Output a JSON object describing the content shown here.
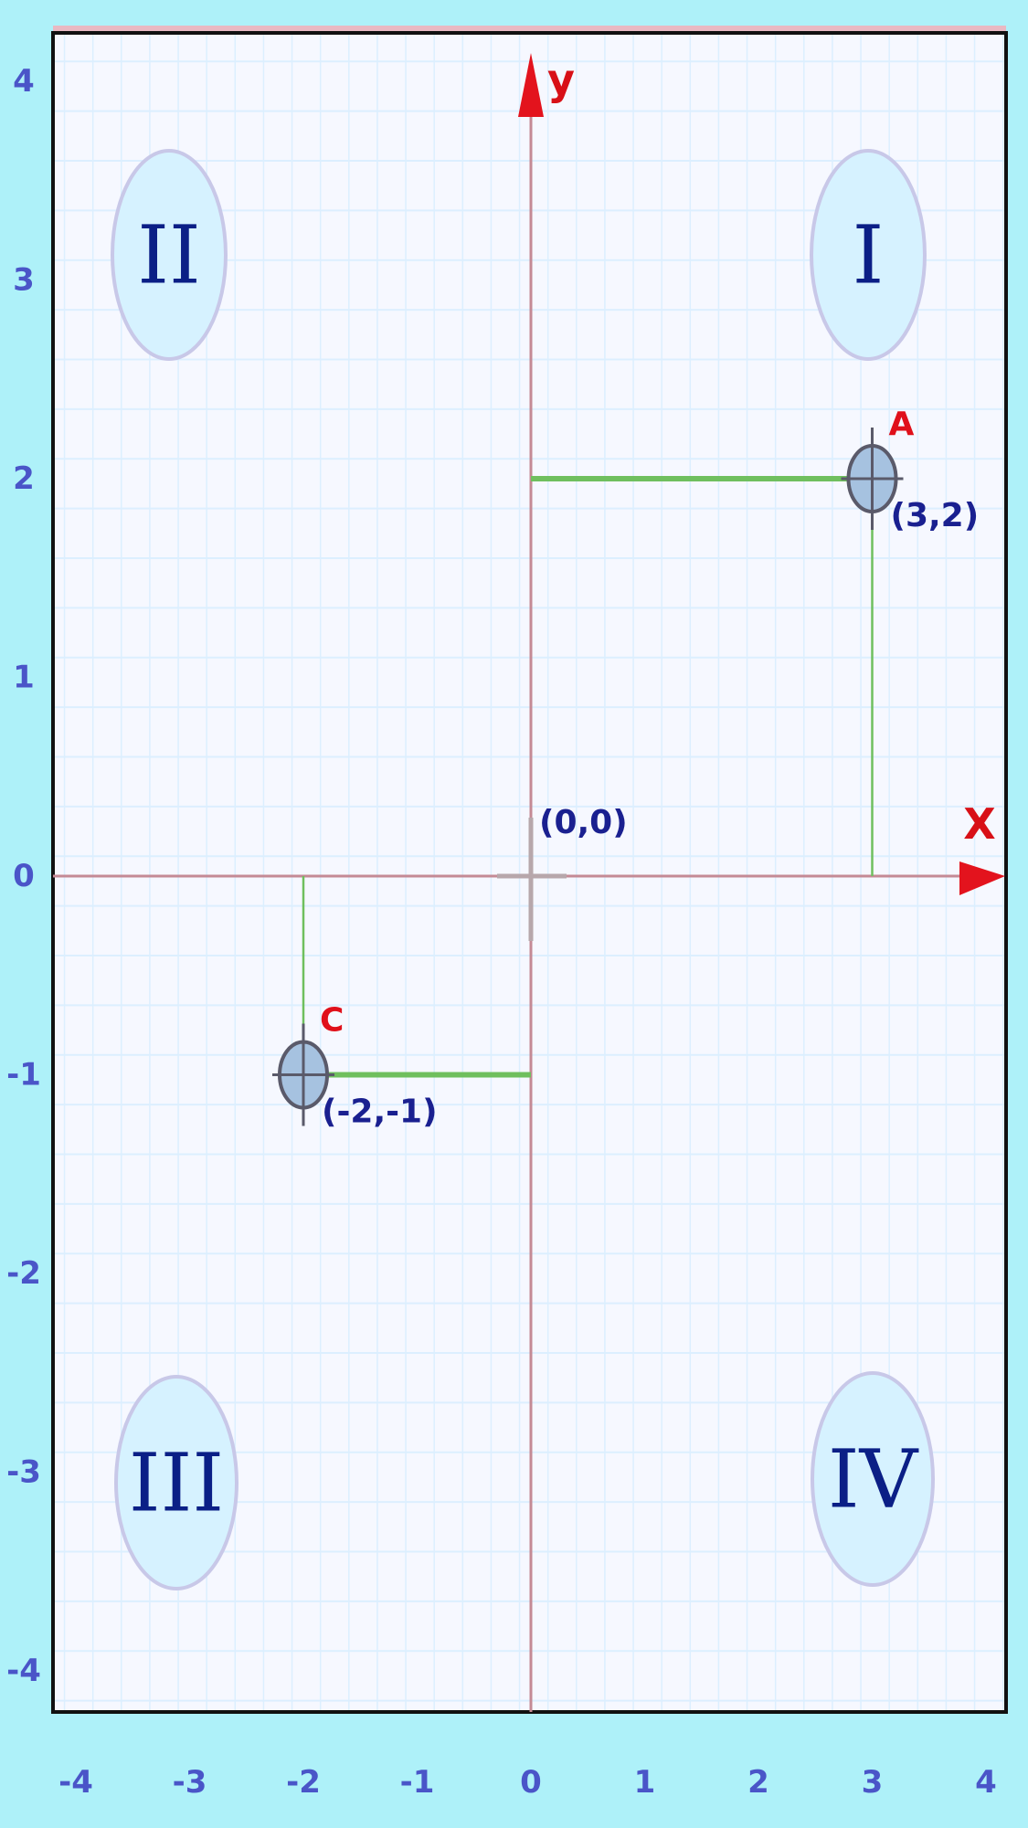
{
  "axes": {
    "x_label": "X",
    "y_label": "y",
    "x_range": [
      -4,
      4
    ],
    "y_range": [
      -4,
      4
    ],
    "x_ticks": [
      "-4",
      "-3",
      "-2",
      "-1",
      "0",
      "1",
      "2",
      "3",
      "4"
    ],
    "y_ticks": [
      "4",
      "3",
      "2",
      "1",
      "0",
      "-1",
      "-2",
      "-3",
      "-4"
    ],
    "origin_label": "(0,0)"
  },
  "quadrants": [
    {
      "id": "q1",
      "label": "I"
    },
    {
      "id": "q2",
      "label": "II"
    },
    {
      "id": "q3",
      "label": "III"
    },
    {
      "id": "q4",
      "label": "IV"
    }
  ],
  "points": [
    {
      "id": "a",
      "name": "A",
      "coord_label": "(3,2)",
      "x": 3,
      "y": 2
    },
    {
      "id": "c",
      "name": "C",
      "coord_label": "(-2,-1)",
      "x": -2,
      "y": -1
    }
  ],
  "colors": {
    "background": "#aef1f9",
    "grid_minor": "#dcefff",
    "grid_major": "#9ee6f0",
    "axis": "#c48a95",
    "projection": "#6fbf5e",
    "arrow": "#e3131d",
    "quadrant_fill": "#d6f2ff",
    "quadrant_stroke": "#c8c8e8"
  }
}
